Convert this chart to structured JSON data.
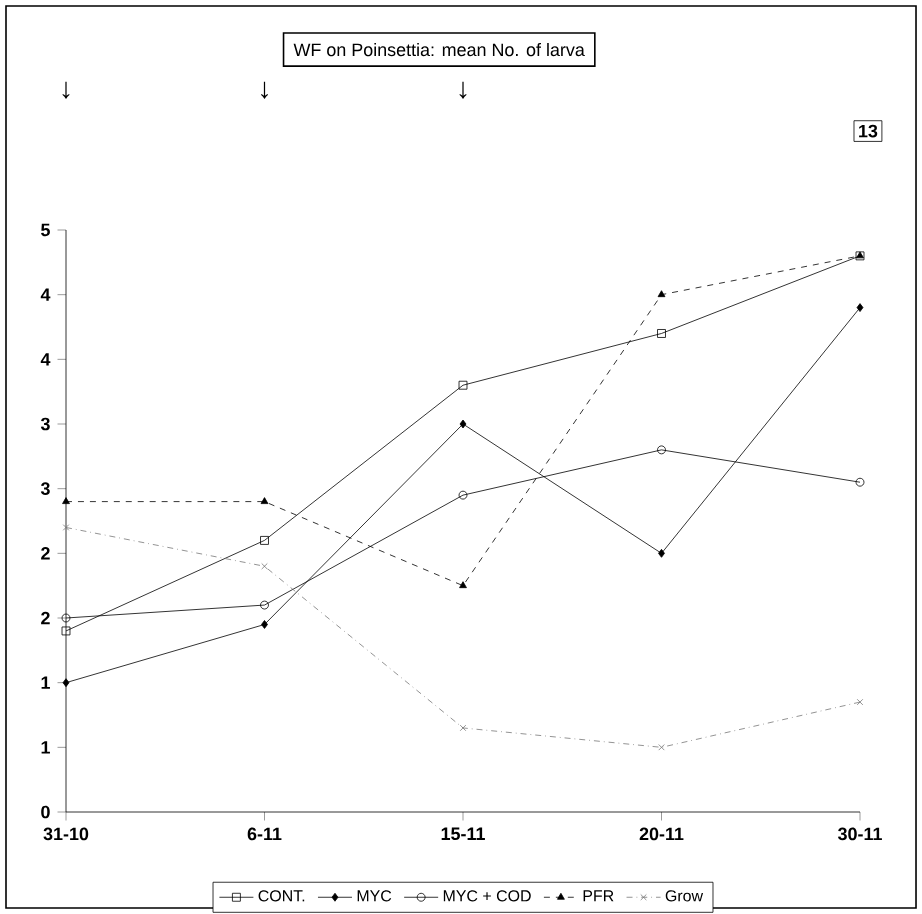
{
  "chart_data": {
    "type": "line",
    "title": "WF on Poinsettia: mean No. of larva",
    "categories": [
      "31-10",
      "6-11",
      "15-11",
      "20-11",
      "30-11"
    ],
    "ylim": [
      0,
      4.5
    ],
    "yticks": [
      {
        "value": 0,
        "label": "0"
      },
      {
        "value": 0.5,
        "label": "1"
      },
      {
        "value": 1,
        "label": "1"
      },
      {
        "value": 1.5,
        "label": "2"
      },
      {
        "value": 2,
        "label": "2"
      },
      {
        "value": 2.5,
        "label": "3"
      },
      {
        "value": 3,
        "label": "3"
      },
      {
        "value": 3.5,
        "label": "4"
      },
      {
        "value": 4,
        "label": "4"
      },
      {
        "value": 4.5,
        "label": "5"
      }
    ],
    "grid": false,
    "legend": "bottom",
    "series": [
      {
        "name": "CONT.",
        "color": "#000000",
        "marker": "square",
        "line_style": "solid",
        "values": [
          1.4,
          2.1,
          3.3,
          3.7,
          4.3
        ]
      },
      {
        "name": "MYC",
        "color": "#000000",
        "marker": "diamond",
        "line_style": "solid",
        "values": [
          1.0,
          1.45,
          3.0,
          2.0,
          3.9
        ]
      },
      {
        "name": "MYC + COD",
        "color": "#000000",
        "marker": "circle",
        "line_style": "solid",
        "values": [
          1.5,
          1.6,
          2.45,
          2.8,
          2.55
        ]
      },
      {
        "name": "PFR",
        "color": "#000000",
        "marker": "triangle",
        "line_style": "dashed",
        "values": [
          2.4,
          2.4,
          1.75,
          4.0,
          4.3
        ]
      },
      {
        "name": "Grow",
        "color": "#777777",
        "marker": "cross",
        "line_style": "dashdotted",
        "values": [
          2.2,
          1.9,
          0.65,
          0.5,
          0.85
        ]
      }
    ],
    "annotations": [
      "↓",
      "↓",
      "↓",
      "13"
    ]
  }
}
